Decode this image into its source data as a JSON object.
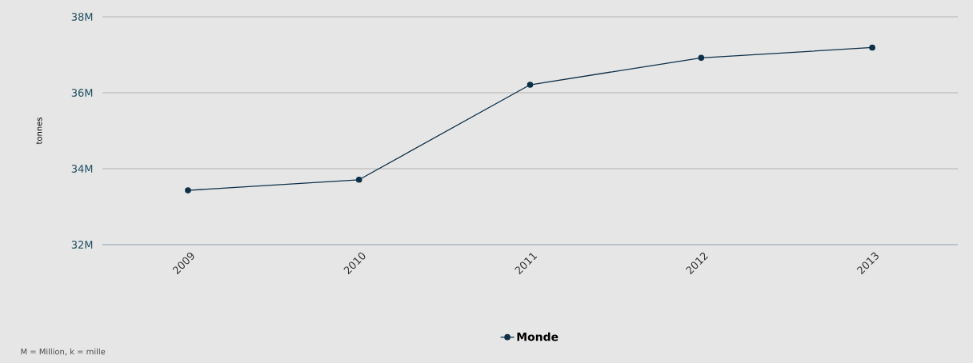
{
  "chart_data": {
    "type": "line",
    "ylabel": "tonnes",
    "categories": [
      "2009",
      "2010",
      "2011",
      "2012",
      "2013"
    ],
    "series": [
      {
        "name": "Monde",
        "color": "#0d3049",
        "values": [
          33430000,
          33710000,
          36210000,
          36920000,
          37190000
        ]
      }
    ],
    "ylim": [
      32000000,
      38000000
    ],
    "yticks": [
      {
        "value": 32000000,
        "label": "32M"
      },
      {
        "value": 34000000,
        "label": "34M"
      },
      {
        "value": 36000000,
        "label": "36M"
      },
      {
        "value": 38000000,
        "label": "38M"
      }
    ],
    "grid": "y",
    "legend": "bottom",
    "marker": "circle",
    "line_style": "solid",
    "annotations": [
      "M = Million, k = mille"
    ]
  }
}
